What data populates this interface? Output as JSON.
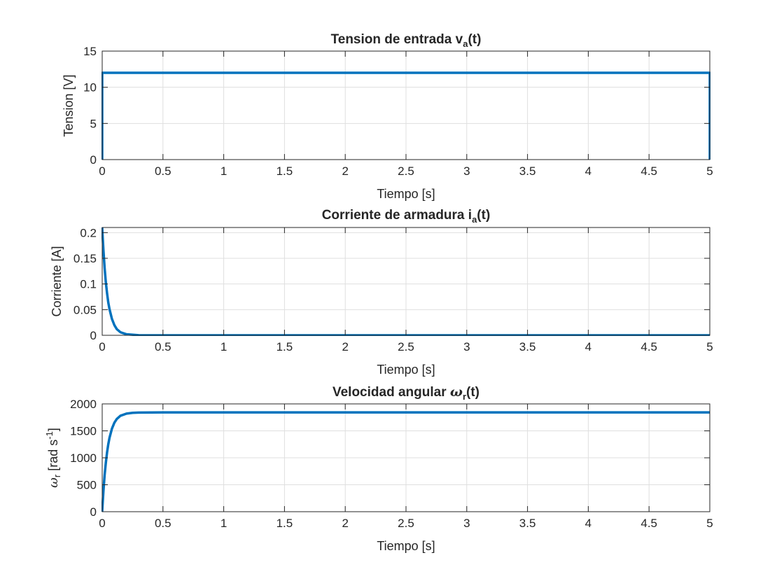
{
  "figure": {
    "background": "#ffffff",
    "line_color": "#0072bd",
    "grid_color": "#dfdfdf",
    "axis_color": "#262626"
  },
  "chart_data": [
    {
      "type": "line",
      "title": "Tension de entrada",
      "title_sym": "v",
      "title_sub": "a",
      "title_tail": "(t)",
      "xlabel": "Tiempo [s]",
      "ylabel": "Tension [V]",
      "xlim": [
        0,
        5
      ],
      "ylim": [
        0,
        15
      ],
      "xticks": [
        0,
        0.5,
        1,
        1.5,
        2,
        2.5,
        3,
        3.5,
        4,
        4.5,
        5
      ],
      "xtick_labels": [
        "0",
        "0.5",
        "1",
        "1.5",
        "2",
        "2.5",
        "3",
        "3.5",
        "4",
        "4.5",
        "5"
      ],
      "yticks": [
        0,
        5,
        10,
        15
      ],
      "ytick_labels": [
        "0",
        "5",
        "10",
        "15"
      ],
      "grid": true,
      "series": [
        {
          "x": [
            0,
            0,
            5,
            5
          ],
          "y": [
            0,
            12,
            12,
            0
          ]
        }
      ]
    },
    {
      "type": "line",
      "title": "Corriente de armadura",
      "title_sym": "i",
      "title_sub": "a",
      "title_tail": "(t)",
      "xlabel": "Tiempo [s]",
      "ylabel": "Corriente [A]",
      "xlim": [
        0,
        5
      ],
      "ylim": [
        0,
        0.21
      ],
      "xticks": [
        0,
        0.5,
        1,
        1.5,
        2,
        2.5,
        3,
        3.5,
        4,
        4.5,
        5
      ],
      "xtick_labels": [
        "0",
        "0.5",
        "1",
        "1.5",
        "2",
        "2.5",
        "3",
        "3.5",
        "4",
        "4.5",
        "5"
      ],
      "yticks": [
        0,
        0.05,
        0.1,
        0.15,
        0.2
      ],
      "ytick_labels": [
        "0",
        "0.05",
        "0.1",
        "0.15",
        "0.2"
      ],
      "grid": true,
      "series": [
        {
          "x": [
            0,
            0.005,
            0.01,
            0.02,
            0.03,
            0.04,
            0.05,
            0.06,
            0.08,
            0.1,
            0.12,
            0.15,
            0.2,
            0.3,
            0.5,
            1,
            2,
            3,
            4,
            5
          ],
          "y": [
            0.21,
            0.187,
            0.166,
            0.131,
            0.103,
            0.082,
            0.064,
            0.051,
            0.032,
            0.02,
            0.012,
            0.006,
            0.002,
            0.0002,
            0,
            0,
            0,
            0,
            0,
            0
          ]
        }
      ]
    },
    {
      "type": "line",
      "title": "Velocidad angular",
      "title_sym": "ω",
      "title_sub": "r",
      "title_tail": "(t)",
      "xlabel": "Tiempo [s]",
      "ylabel_sym": "ω",
      "ylabel_sub": "r",
      "ylabel_text": "[rad  s",
      "ylabel_sup": "-1",
      "ylabel_close": "]",
      "xlim": [
        0,
        5
      ],
      "ylim": [
        0,
        2000
      ],
      "xticks": [
        0,
        0.5,
        1,
        1.5,
        2,
        2.5,
        3,
        3.5,
        4,
        4.5,
        5
      ],
      "xtick_labels": [
        "0",
        "0.5",
        "1",
        "1.5",
        "2",
        "2.5",
        "3",
        "3.5",
        "4",
        "4.5",
        "5"
      ],
      "yticks": [
        0,
        500,
        1000,
        1500,
        2000
      ],
      "ytick_labels": [
        "0",
        "500",
        "1000",
        "1500",
        "2000"
      ],
      "grid": true,
      "series": [
        {
          "x": [
            0,
            0.005,
            0.01,
            0.02,
            0.03,
            0.04,
            0.05,
            0.06,
            0.08,
            0.1,
            0.12,
            0.15,
            0.2,
            0.25,
            0.3,
            0.5,
            1,
            2,
            3,
            4,
            5
          ],
          "y": [
            0,
            200,
            380,
            680,
            910,
            1100,
            1250,
            1370,
            1540,
            1650,
            1720,
            1780,
            1820,
            1835,
            1840,
            1842,
            1842,
            1842,
            1842,
            1842,
            1842
          ]
        }
      ]
    }
  ]
}
